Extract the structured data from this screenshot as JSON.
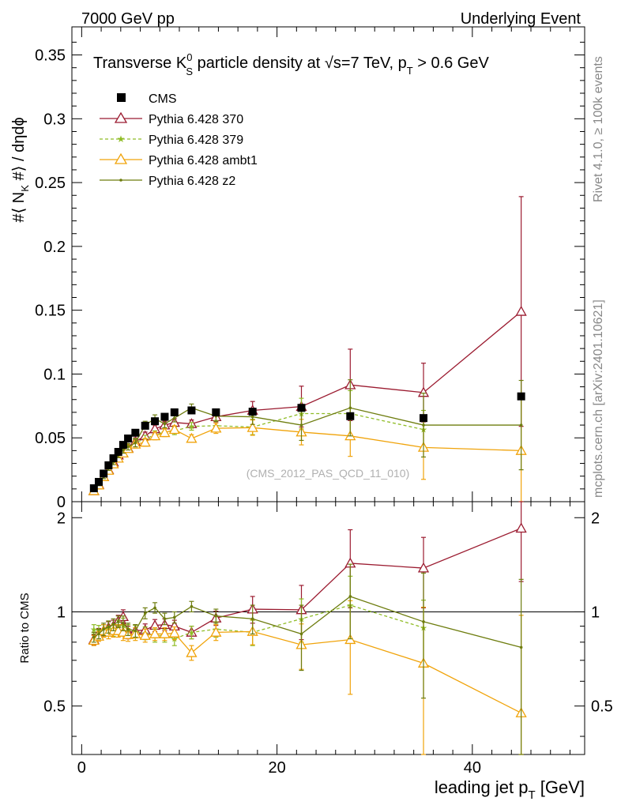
{
  "header": {
    "left": "7000 GeV pp",
    "right": "Underlying Event"
  },
  "side_labels": {
    "rivet": "Rivet 4.1.0, ≥ 100k events",
    "mcplots": "mcplots.cern.ch [arXiv:2401.10621]"
  },
  "chart_data": {
    "type": "scatter",
    "title": {
      "prefix": "Transverse K",
      "sup": "0",
      "sub": "S",
      "mid": " particle density at ",
      "sqrt": "√s",
      "eq": "=7 TeV, p",
      "sub2": "T",
      "suffix": " > 0.6 GeV"
    },
    "watermark": "(CMS_2012_PAS_QCD_11_010)",
    "ylabel": {
      "pre": "#⟨ N",
      "sub": "K",
      "post": " #⟩ / dηdϕ"
    },
    "xlabel": {
      "pre": "leading jet p",
      "sub": "T",
      "post": " [GeV]"
    },
    "ratio_ylabel": "Ratio to CMS",
    "xlim": [
      -1,
      51.5
    ],
    "main_ylim": [
      0,
      0.372
    ],
    "ratio_ylim": [
      0.35,
      2.25
    ],
    "main_yticks": [
      "0",
      "0.05",
      "0.1",
      "0.15",
      "0.2",
      "0.25",
      "0.3",
      "0.35"
    ],
    "main_ytick_values": [
      0,
      0.05,
      0.1,
      0.15,
      0.2,
      0.25,
      0.3,
      0.35
    ],
    "ratio_yticks": [
      "0.5",
      "1",
      "2"
    ],
    "ratio_ytick_values": [
      0.5,
      1,
      2
    ],
    "xticks": [
      "0",
      "20",
      "40"
    ],
    "xtick_values": [
      0,
      20,
      40
    ],
    "x": [
      1.25,
      1.75,
      2.25,
      2.75,
      3.25,
      3.75,
      4.25,
      4.75,
      5.5,
      6.5,
      7.5,
      8.5,
      9.5,
      11.25,
      13.75,
      17.5,
      22.5,
      27.5,
      35,
      45
    ],
    "data": {
      "name": "CMS",
      "color": "#000000",
      "values": [
        0.0105,
        0.0155,
        0.022,
        0.0285,
        0.034,
        0.039,
        0.0445,
        0.0495,
        0.054,
        0.0595,
        0.063,
        0.0665,
        0.07,
        0.0715,
        0.07,
        0.0705,
        0.0735,
        0.067,
        0.0655,
        0.0825
      ]
    },
    "series": [
      {
        "name": "Pythia 6.428 370",
        "color": "#9b1b30",
        "marker": "open-triangle",
        "dash": "solid",
        "values": [
          0.0085,
          0.0135,
          0.0195,
          0.025,
          0.031,
          0.0365,
          0.043,
          0.042,
          0.047,
          0.0515,
          0.057,
          0.06,
          0.062,
          0.061,
          0.0665,
          0.0715,
          0.0745,
          0.0915,
          0.0855,
          0.149
        ],
        "errors": [
          0.001,
          0.001,
          0.0015,
          0.0015,
          0.002,
          0.002,
          0.0025,
          0.0025,
          0.003,
          0.003,
          0.003,
          0.003,
          0.003,
          0.003,
          0.004,
          0.007,
          0.016,
          0.028,
          0.023,
          0.09
        ],
        "ratio": [
          0.815,
          0.855,
          0.87,
          0.89,
          0.9,
          0.935,
          0.965,
          0.86,
          0.87,
          0.875,
          0.905,
          0.91,
          0.9,
          0.86,
          0.955,
          1.02,
          1.015,
          1.43,
          1.38,
          1.85
        ],
        "ratio_errors": [
          0.03,
          0.03,
          0.04,
          0.04,
          0.04,
          0.04,
          0.05,
          0.04,
          0.04,
          0.04,
          0.04,
          0.04,
          0.04,
          0.04,
          0.05,
          0.1,
          0.2,
          0.4,
          0.35,
          0.6
        ]
      },
      {
        "name": "Pythia 6.428 379",
        "color": "#8fbc26",
        "marker": "star",
        "dash": "dashed",
        "values": [
          0.0095,
          0.0135,
          0.0195,
          0.0255,
          0.0305,
          0.035,
          0.0405,
          0.043,
          0.0465,
          0.049,
          0.0525,
          0.0545,
          0.0555,
          0.059,
          0.0595,
          0.0585,
          0.069,
          0.069,
          0.0565,
          null
        ],
        "errors": [
          0.001,
          0.001,
          0.0015,
          0.0015,
          0.002,
          0.002,
          0.0025,
          0.0025,
          0.003,
          0.003,
          0.003,
          0.003,
          0.003,
          0.003,
          0.004,
          0.006,
          0.012,
          0.018,
          0.015,
          null
        ],
        "ratio": [
          0.88,
          0.875,
          0.87,
          0.895,
          0.875,
          0.9,
          0.905,
          0.87,
          0.865,
          0.855,
          0.84,
          0.84,
          0.82,
          0.86,
          0.88,
          0.86,
          0.95,
          1.05,
          0.89,
          null
        ],
        "ratio_errors": [
          0.03,
          0.03,
          0.04,
          0.04,
          0.04,
          0.04,
          0.05,
          0.04,
          0.04,
          0.04,
          0.04,
          0.04,
          0.04,
          0.04,
          0.05,
          0.08,
          0.15,
          0.25,
          0.2,
          null
        ]
      },
      {
        "name": "Pythia 6.428 ambt1",
        "color": "#f0a30a",
        "marker": "open-triangle",
        "dash": "solid",
        "values": [
          0.0085,
          0.013,
          0.0195,
          0.0245,
          0.0295,
          0.034,
          0.038,
          0.0415,
          0.045,
          0.0465,
          0.0515,
          0.054,
          0.0565,
          0.0495,
          0.0575,
          0.058,
          0.0545,
          0.0515,
          0.0425,
          0.04
        ],
        "errors": [
          0.001,
          0.001,
          0.0015,
          0.0015,
          0.002,
          0.002,
          0.0025,
          0.0025,
          0.003,
          0.003,
          0.003,
          0.003,
          0.003,
          0.003,
          0.004,
          0.006,
          0.01,
          0.016,
          0.025,
          0.04
        ],
        "ratio": [
          0.81,
          0.835,
          0.87,
          0.86,
          0.87,
          0.87,
          0.86,
          0.845,
          0.85,
          0.84,
          0.85,
          0.85,
          0.855,
          0.74,
          0.86,
          0.865,
          0.785,
          0.815,
          0.685,
          0.475
        ],
        "ratio_errors": [
          0.03,
          0.03,
          0.04,
          0.04,
          0.04,
          0.04,
          0.05,
          0.04,
          0.04,
          0.04,
          0.04,
          0.04,
          0.04,
          0.04,
          0.05,
          0.08,
          0.13,
          0.27,
          0.35,
          0.5
        ]
      },
      {
        "name": "Pythia 6.428 z2",
        "color": "#6e7d0f",
        "marker": "dot",
        "dash": "solid",
        "values": [
          0.009,
          0.0135,
          0.0195,
          0.026,
          0.031,
          0.0365,
          0.0405,
          0.043,
          0.046,
          0.06,
          0.065,
          0.061,
          0.0655,
          0.0735,
          0.067,
          0.0665,
          0.06,
          0.0735,
          0.06,
          0.06
        ],
        "errors": [
          0.001,
          0.001,
          0.0015,
          0.0015,
          0.002,
          0.002,
          0.0025,
          0.0025,
          0.003,
          0.003,
          0.003,
          0.003,
          0.003,
          0.003,
          0.004,
          0.006,
          0.012,
          0.022,
          0.025,
          0.035
        ],
        "ratio": [
          0.83,
          0.85,
          0.88,
          0.895,
          0.91,
          0.93,
          0.92,
          0.88,
          0.87,
          0.99,
          1.03,
          0.95,
          0.96,
          1.04,
          0.97,
          0.95,
          0.85,
          1.12,
          0.93,
          0.77
        ],
        "ratio_errors": [
          0.03,
          0.03,
          0.04,
          0.04,
          0.04,
          0.04,
          0.05,
          0.04,
          0.04,
          0.04,
          0.04,
          0.04,
          0.04,
          0.04,
          0.05,
          0.1,
          0.2,
          0.3,
          0.4,
          0.5
        ]
      }
    ]
  }
}
